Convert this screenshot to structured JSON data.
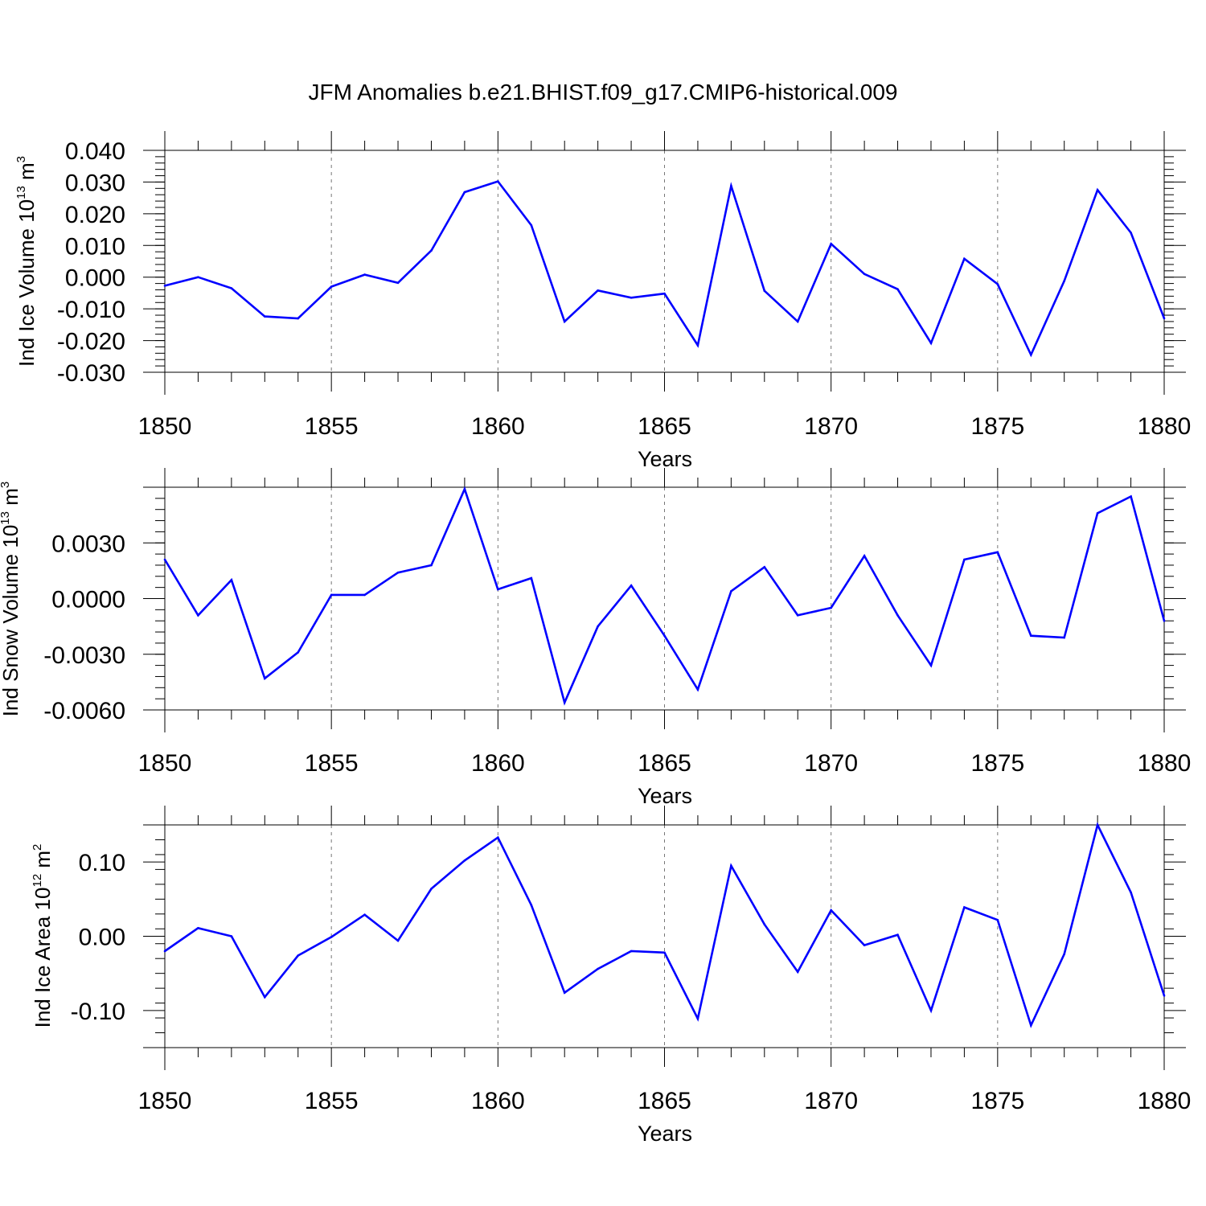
{
  "chart_data": {
    "title": "JFM Anomalies b.e21.BHIST.f09_g17.CMIP6-historical.009",
    "series_color": "#0000ff",
    "panels": [
      {
        "type": "line",
        "ylabel": {
          "main": "Ind Ice Volume 10",
          "exp": "13",
          "unit": " m",
          "unit_exp": "3"
        },
        "xlabel": "Years",
        "xlim": [
          1850,
          1880
        ],
        "ylim": [
          -0.03,
          0.04
        ],
        "yticks": [
          -0.03,
          -0.02,
          -0.01,
          0.0,
          0.01,
          0.02,
          0.03,
          0.04
        ],
        "ytick_labels": [
          "-0.030",
          "-0.020",
          "-0.010",
          "0.000",
          "0.010",
          "0.020",
          "0.030",
          "0.040"
        ],
        "xticks": [
          1850,
          1855,
          1860,
          1865,
          1870,
          1875,
          1880
        ],
        "xtick_labels": [
          "1850",
          "1855",
          "1860",
          "1865",
          "1870",
          "1875",
          "1880"
        ],
        "x": [
          1850,
          1851,
          1852,
          1853,
          1854,
          1855,
          1856,
          1857,
          1858,
          1859,
          1860,
          1861,
          1862,
          1863,
          1864,
          1865,
          1866,
          1867,
          1868,
          1869,
          1870,
          1871,
          1872,
          1873,
          1874,
          1875,
          1876,
          1877,
          1878,
          1879,
          1880
        ],
        "values": [
          -0.0027,
          0.0,
          -0.0035,
          -0.0124,
          -0.013,
          -0.003,
          0.0008,
          -0.0018,
          0.0084,
          0.0268,
          0.0302,
          0.0164,
          -0.014,
          -0.0042,
          -0.0065,
          -0.0052,
          -0.0215,
          0.0288,
          -0.0043,
          -0.014,
          0.0105,
          0.001,
          -0.0038,
          -0.0208,
          0.0058,
          -0.0022,
          -0.0245,
          -0.0012,
          0.0275,
          0.014,
          -0.013
        ]
      },
      {
        "type": "line",
        "ylabel": {
          "main": "Ind Snow Volume 10",
          "exp": "13",
          "unit": " m",
          "unit_exp": "3"
        },
        "xlabel": "Years",
        "xlim": [
          1850,
          1880
        ],
        "ylim": [
          -0.006,
          0.006
        ],
        "yticks": [
          -0.006,
          -0.003,
          0.0,
          0.003
        ],
        "ytick_labels": [
          "-0.0060",
          "-0.0030",
          "0.0000",
          "0.0030"
        ],
        "xticks": [
          1850,
          1855,
          1860,
          1865,
          1870,
          1875,
          1880
        ],
        "xtick_labels": [
          "1850",
          "1855",
          "1860",
          "1865",
          "1870",
          "1875",
          "1880"
        ],
        "x": [
          1850,
          1851,
          1852,
          1853,
          1854,
          1855,
          1856,
          1857,
          1858,
          1859,
          1860,
          1861,
          1862,
          1863,
          1864,
          1865,
          1866,
          1867,
          1868,
          1869,
          1870,
          1871,
          1872,
          1873,
          1874,
          1875,
          1876,
          1877,
          1878,
          1879,
          1880
        ],
        "values": [
          0.0021,
          -0.0009,
          0.001,
          -0.0043,
          -0.0029,
          0.0002,
          0.0002,
          0.0014,
          0.0018,
          0.0059,
          0.0005,
          0.0011,
          -0.0056,
          -0.0015,
          0.0007,
          -0.002,
          -0.0049,
          0.0004,
          0.0017,
          -0.0009,
          -0.0005,
          0.0023,
          -0.0009,
          -0.0036,
          0.0021,
          0.0025,
          -0.002,
          -0.0021,
          0.0046,
          0.0055,
          -0.0012
        ]
      },
      {
        "type": "line",
        "ylabel": {
          "main": "Ind Ice Area 10",
          "exp": "12",
          "unit": " m",
          "unit_exp": "2"
        },
        "xlabel": "Years",
        "xlim": [
          1850,
          1880
        ],
        "ylim": [
          -0.15,
          0.15
        ],
        "yticks": [
          -0.1,
          0.0,
          0.1
        ],
        "ytick_labels": [
          "-0.10",
          "0.00",
          "0.10"
        ],
        "xticks": [
          1850,
          1855,
          1860,
          1865,
          1870,
          1875,
          1880
        ],
        "xtick_labels": [
          "1850",
          "1855",
          "1860",
          "1865",
          "1870",
          "1875",
          "1880"
        ],
        "x": [
          1850,
          1851,
          1852,
          1853,
          1854,
          1855,
          1856,
          1857,
          1858,
          1859,
          1860,
          1861,
          1862,
          1863,
          1864,
          1865,
          1866,
          1867,
          1868,
          1869,
          1870,
          1871,
          1872,
          1873,
          1874,
          1875,
          1876,
          1877,
          1878,
          1879,
          1880
        ],
        "values": [
          -0.02,
          0.011,
          0.0,
          -0.082,
          -0.026,
          -0.001,
          0.029,
          -0.006,
          0.064,
          0.102,
          0.133,
          0.042,
          -0.076,
          -0.044,
          -0.02,
          -0.022,
          -0.111,
          0.095,
          0.016,
          -0.048,
          0.035,
          -0.012,
          0.002,
          -0.1,
          0.039,
          0.022,
          -0.12,
          -0.024,
          0.15,
          0.059,
          -0.08
        ]
      }
    ]
  }
}
